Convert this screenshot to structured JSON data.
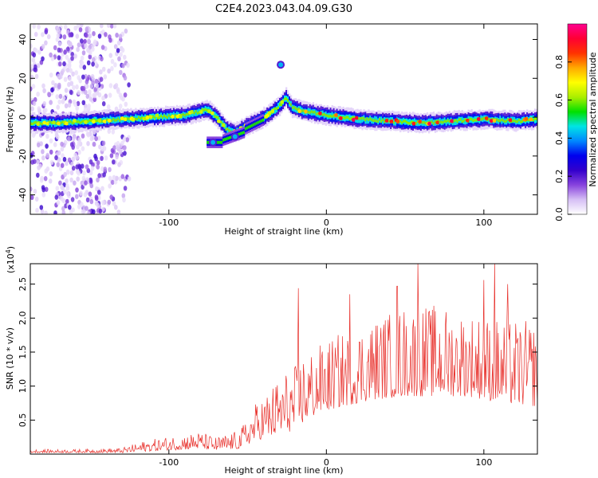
{
  "title": "C2E4.2023.043.04.09.G30",
  "colors": {
    "snr_line": "#e8312c",
    "axis": "#000000",
    "ridge_core": "#ff3300",
    "background": "#ffffff"
  },
  "chart_data": [
    {
      "type": "heatmap",
      "name": "spectrogram",
      "xlabel": "Height of straight line (km)",
      "ylabel": "Frequency (Hz)",
      "xlim": [
        -188,
        134
      ],
      "ylim": [
        -50,
        48
      ],
      "xticks": [
        -100,
        0,
        100
      ],
      "xtick_labels": [
        "-100",
        "0",
        "100"
      ],
      "yticks": [
        -40,
        -20,
        0,
        20,
        40
      ],
      "ytick_labels": [
        "-40",
        "-20",
        "0",
        "20",
        "40"
      ],
      "ridge_centerline_hz": [
        [
          -188,
          -3
        ],
        [
          -170,
          -3
        ],
        [
          -150,
          -2
        ],
        [
          -130,
          -1
        ],
        [
          -110,
          0
        ],
        [
          -90,
          1
        ],
        [
          -76,
          4
        ],
        [
          -70,
          0
        ],
        [
          -64,
          -6
        ],
        [
          -58,
          -8
        ],
        [
          -50,
          -4
        ],
        [
          -44,
          -2
        ],
        [
          -36,
          2
        ],
        [
          -30,
          6
        ],
        [
          -26,
          10
        ],
        [
          -22,
          5
        ],
        [
          -15,
          3
        ],
        [
          0,
          1
        ],
        [
          20,
          -1
        ],
        [
          40,
          -2
        ],
        [
          60,
          -3
        ],
        [
          80,
          -2
        ],
        [
          100,
          -1
        ],
        [
          120,
          -2
        ],
        [
          134,
          -1
        ]
      ],
      "features": [
        {
          "x": -29,
          "y": 27,
          "note": "isolated high-frequency blob"
        },
        {
          "x": -72,
          "y": -13,
          "note": "low branch"
        },
        {
          "x": -58,
          "y": -10,
          "note": "low branch"
        }
      ],
      "noise_band_km": [
        -188,
        -125
      ]
    },
    {
      "type": "colorbar",
      "label": "Normalized spectral amplitude",
      "range": [
        0.0,
        1.0
      ],
      "ticks": [
        0.0,
        0.2,
        0.4,
        0.6,
        0.8
      ],
      "tick_labels": [
        "0.0",
        "0.2",
        "0.4",
        "0.6",
        "0.8"
      ],
      "color_stops": [
        "#ffffff",
        "#d6bff5",
        "#8844dd",
        "#3300cc",
        "#0000ee",
        "#0088ff",
        "#00e5e5",
        "#00e000",
        "#aaee00",
        "#ffff00",
        "#ffaa00",
        "#ff3300",
        "#ff0033",
        "#ff0090"
      ]
    },
    {
      "type": "line",
      "name": "snr",
      "xlabel": "Height of straight line (km)",
      "ylabel": "SNR (10 * v/v)",
      "y_scale_label": "(x10",
      "y_scale_exp": "4",
      "y_scale_close": ")",
      "xlim": [
        -188,
        134
      ],
      "ylim": [
        0,
        2.8
      ],
      "xticks": [
        -100,
        0,
        100
      ],
      "xtick_labels": [
        "-100",
        "0",
        "100"
      ],
      "yticks": [
        0.5,
        1.0,
        1.5,
        2.0,
        2.5
      ],
      "ytick_labels": [
        "0.5",
        "1.0",
        "1.5",
        "2.0",
        "2.5"
      ],
      "envelope": [
        [
          -188,
          0.02,
          0.07
        ],
        [
          -160,
          0.02,
          0.07
        ],
        [
          -130,
          0.02,
          0.09
        ],
        [
          -115,
          0.04,
          0.2
        ],
        [
          -95,
          0.06,
          0.28
        ],
        [
          -80,
          0.08,
          0.33
        ],
        [
          -70,
          0.05,
          0.25
        ],
        [
          -55,
          0.08,
          0.35
        ],
        [
          -45,
          0.2,
          0.75
        ],
        [
          -35,
          0.25,
          1.0
        ],
        [
          -28,
          0.3,
          1.2
        ],
        [
          -20,
          0.35,
          1.3
        ],
        [
          -15,
          0.45,
          1.5
        ],
        [
          -5,
          0.6,
          1.6
        ],
        [
          10,
          0.7,
          1.8
        ],
        [
          30,
          0.8,
          2.0
        ],
        [
          50,
          0.85,
          2.2
        ],
        [
          70,
          0.85,
          2.2
        ],
        [
          90,
          0.85,
          2.1
        ],
        [
          110,
          0.75,
          2.0
        ],
        [
          134,
          0.7,
          1.95
        ]
      ],
      "spikes": [
        [
          -18,
          2.44
        ],
        [
          15,
          2.35
        ],
        [
          45,
          2.47
        ],
        [
          58,
          2.8
        ],
        [
          100,
          2.56
        ],
        [
          107,
          2.8
        ],
        [
          115,
          2.5
        ]
      ]
    }
  ]
}
